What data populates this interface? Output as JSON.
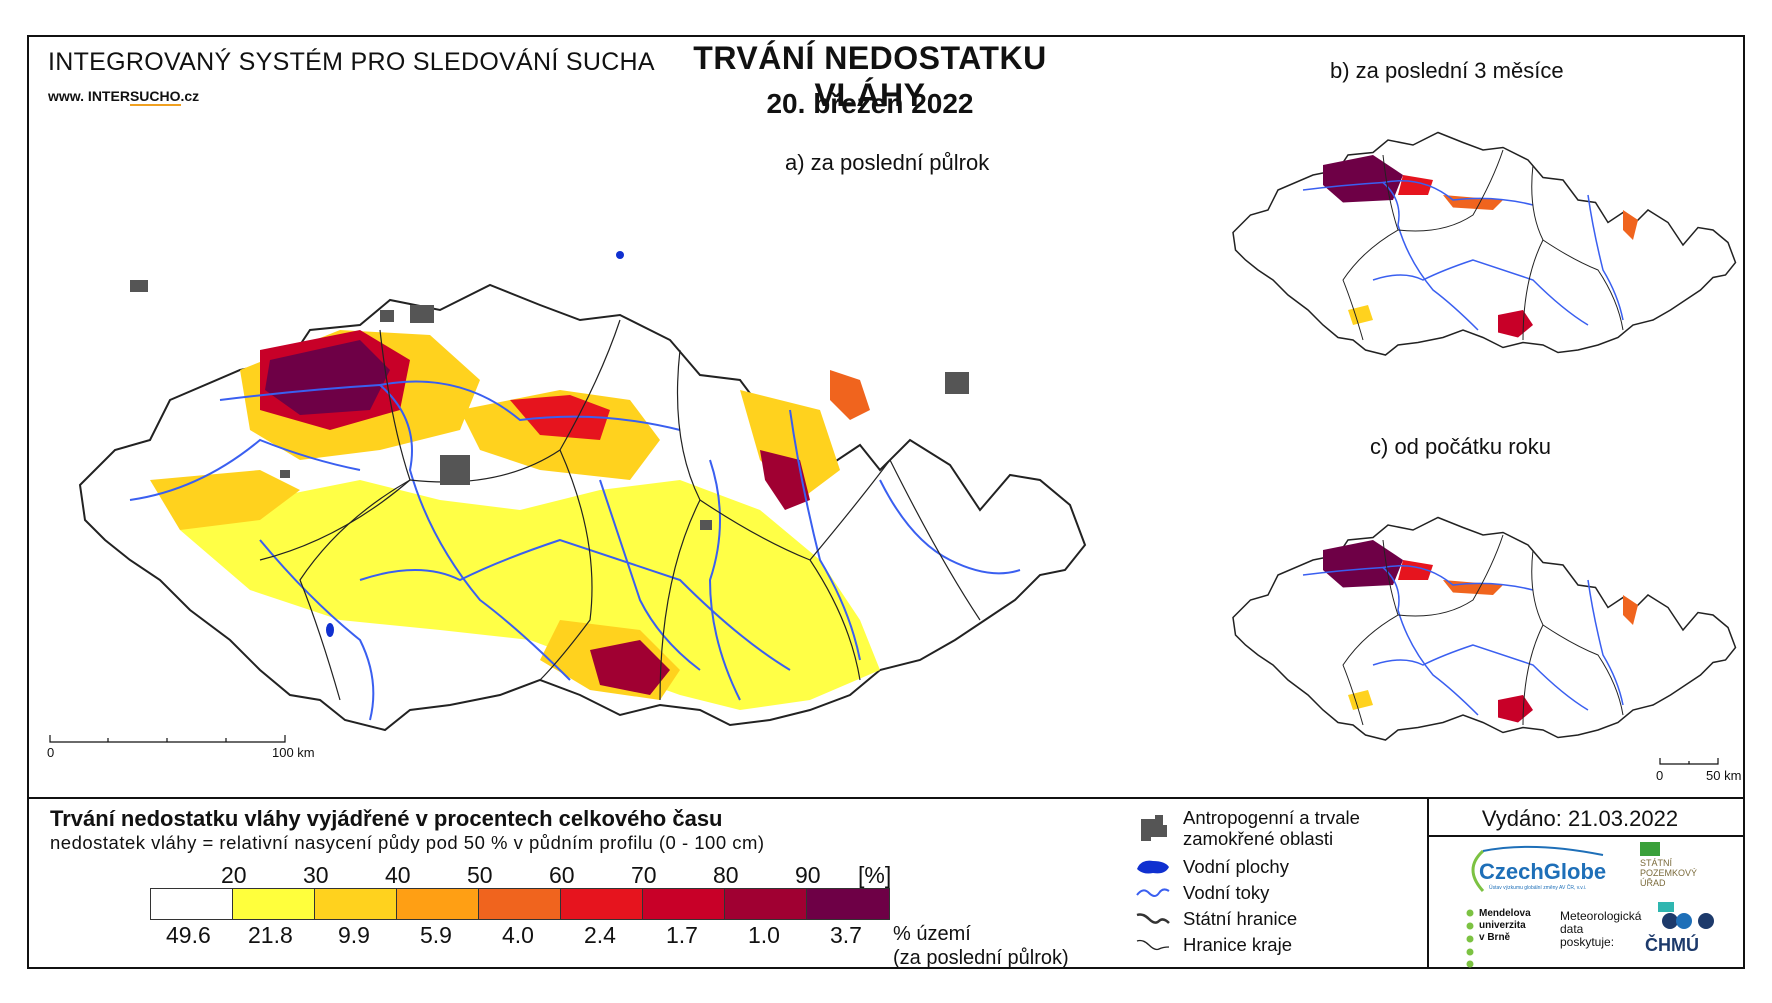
{
  "header": {
    "system": "INTEGROVANÝ SYSTÉM PRO SLEDOVÁNÍ SUCHA",
    "www_prefix": "www. INTER",
    "www_mid": "SUCHO",
    "www_suffix": ".cz",
    "title": "TRVÁNÍ NEDOSTATKU VLÁHY",
    "date": "20. březen 2022"
  },
  "panels": {
    "a": "a) za poslední půlrok",
    "b": "b) za poslední 3 měsíce",
    "c": "c) od počátku roku"
  },
  "scalebars": {
    "main": {
      "start": "0",
      "end": "100 km"
    },
    "inset": {
      "start": "0",
      "end": "50 km"
    }
  },
  "legend": {
    "title": "Trvání nedostatku vláhy vyjádřené v procentech celkového času",
    "subtitle": "nedostatek vláhy = relativní nasycení půdy pod 50 % v půdním profilu (0 - 100 cm)",
    "thresholds": [
      "20",
      "30",
      "40",
      "50",
      "60",
      "70",
      "80",
      "90"
    ],
    "unit": "[%]",
    "colors": [
      "#ffffff",
      "#ffff3c",
      "#ffd21e",
      "#ff9f14",
      "#f0641e",
      "#e6141e",
      "#c80028",
      "#a00032",
      "#6e0046"
    ],
    "shares": [
      "49.6",
      "21.8",
      "9.9",
      "5.9",
      "4.0",
      "2.4",
      "1.7",
      "1.0",
      "3.7"
    ],
    "share_label_1": "% území",
    "share_label_2": "(za poslední půlrok)"
  },
  "symbols": {
    "urban": "Antropogenní a trvale",
    "urban2": "zamokřené oblasti",
    "water_bodies": "Vodní plochy",
    "rivers": "Vodní toky",
    "state_border": "Státní hranice",
    "region_border": "Hranice kraje"
  },
  "issued": "Vydáno: 21.03.2022",
  "logos": {
    "czechglobe": "CzechGlobe",
    "czechglobe_sub": "Ústav výzkumu globální změny AV ČR, v.v.i.",
    "spu_1": "STÁTNÍ",
    "spu_2": "POZEMKOVÝ",
    "spu_3": "ÚŘAD",
    "mendel_1": "Mendelova",
    "mendel_2": "univerzita",
    "mendel_3": "v Brně",
    "meteo_1": "Meteorologická",
    "meteo_2": "data",
    "meteo_3": "poskytuje:",
    "chmu": "ČHMÚ"
  },
  "map_colors": {
    "rivers": "#3a5ff0",
    "urban": "#555555",
    "border": "#222222"
  }
}
